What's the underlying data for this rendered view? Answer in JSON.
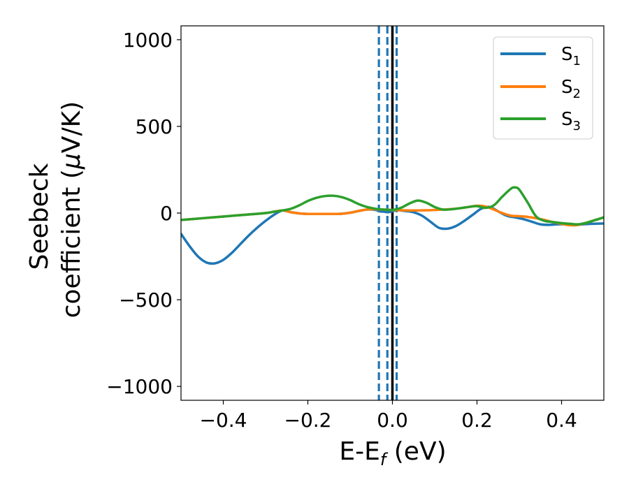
{
  "chart_data": {
    "type": "line",
    "title": "",
    "xlabel": {
      "main": "E-E",
      "sub": "f",
      "tail": " (eV)"
    },
    "ylabel": {
      "line1": "Seebeck",
      "line2_pre": "coefficient  (",
      "line2_mu": "μ",
      "line2_post": "V/K)"
    },
    "xlim": [
      -0.5,
      0.5
    ],
    "ylim": [
      -1080,
      1080
    ],
    "x_ticks": [
      -0.4,
      -0.2,
      0.0,
      0.2,
      0.4
    ],
    "x_tick_labels": [
      "−0.4",
      "−0.2",
      "0.0",
      "0.2",
      "0.4"
    ],
    "y_ticks": [
      -1000,
      -500,
      0,
      500,
      1000
    ],
    "y_tick_labels": [
      "−1000",
      "−500",
      "0",
      "500",
      "1000"
    ],
    "grid": false,
    "legend_position": "top-right",
    "colors": {
      "s1": "#1f77b4",
      "s2": "#ff7f0e",
      "s3": "#2ca02c",
      "fermi": "#000000"
    },
    "vertical_lines": [
      {
        "x": -0.032,
        "style": "dashed",
        "color": "#1f77b4"
      },
      {
        "x": -0.012,
        "style": "dashed",
        "color": "#1f77b4"
      },
      {
        "x": 0.01,
        "style": "dashed",
        "color": "#1f77b4"
      },
      {
        "x": 0.0,
        "style": "solid",
        "color": "#000000"
      }
    ],
    "series": [
      {
        "name": "S",
        "sub": "1",
        "color": "#1f77b4",
        "x": [
          -0.5,
          -0.48,
          -0.46,
          -0.44,
          -0.42,
          -0.4,
          -0.38,
          -0.36,
          -0.34,
          -0.32,
          -0.3,
          -0.28,
          -0.26,
          -0.24,
          -0.22,
          -0.2,
          -0.18,
          -0.16,
          -0.14,
          -0.12,
          -0.1,
          -0.08,
          -0.06,
          -0.04,
          -0.03,
          -0.02,
          -0.01,
          0.0,
          0.01,
          0.02,
          0.03,
          0.05,
          0.07,
          0.09,
          0.11,
          0.13,
          0.15,
          0.17,
          0.19,
          0.21,
          0.23,
          0.25,
          0.27,
          0.29,
          0.31,
          0.33,
          0.35,
          0.37,
          0.39,
          0.41,
          0.43,
          0.45,
          0.47,
          0.5
        ],
        "values": [
          -120,
          -190,
          -250,
          -285,
          -290,
          -270,
          -230,
          -180,
          -130,
          -85,
          -45,
          -10,
          15,
          5,
          -2,
          -5,
          -5,
          -5,
          -5,
          -4,
          2,
          12,
          20,
          18,
          10,
          8,
          5,
          10,
          18,
          15,
          12,
          5,
          -15,
          -50,
          -85,
          -90,
          -75,
          -45,
          -10,
          25,
          35,
          10,
          -15,
          -25,
          -35,
          -50,
          -65,
          -68,
          -65,
          -65,
          -68,
          -65,
          -62,
          -60
        ]
      },
      {
        "name": "S",
        "sub": "2",
        "color": "#ff7f0e",
        "x": [
          -0.5,
          -0.45,
          -0.4,
          -0.35,
          -0.3,
          -0.28,
          -0.26,
          -0.24,
          -0.22,
          -0.2,
          -0.18,
          -0.16,
          -0.14,
          -0.12,
          -0.1,
          -0.08,
          -0.06,
          -0.04,
          -0.02,
          0.0,
          0.02,
          0.04,
          0.06,
          0.08,
          0.1,
          0.12,
          0.14,
          0.16,
          0.18,
          0.2,
          0.22,
          0.24,
          0.26,
          0.28,
          0.3,
          0.32,
          0.34,
          0.36,
          0.38,
          0.4,
          0.42,
          0.44,
          0.46,
          0.48,
          0.5
        ],
        "values": [
          -40,
          -30,
          -20,
          -10,
          0,
          8,
          15,
          5,
          -2,
          -5,
          -5,
          -5,
          -5,
          -4,
          2,
          12,
          20,
          22,
          20,
          18,
          16,
          15,
          15,
          16,
          18,
          20,
          23,
          28,
          35,
          42,
          38,
          20,
          0,
          -15,
          -18,
          -22,
          -30,
          -40,
          -52,
          -62,
          -70,
          -68,
          -55,
          -40,
          -25
        ]
      },
      {
        "name": "S",
        "sub": "3",
        "color": "#2ca02c",
        "x": [
          -0.5,
          -0.45,
          -0.4,
          -0.35,
          -0.3,
          -0.28,
          -0.26,
          -0.24,
          -0.22,
          -0.2,
          -0.18,
          -0.16,
          -0.14,
          -0.12,
          -0.1,
          -0.08,
          -0.06,
          -0.04,
          -0.02,
          0.0,
          0.02,
          0.04,
          0.06,
          0.08,
          0.1,
          0.12,
          0.14,
          0.16,
          0.18,
          0.2,
          0.22,
          0.24,
          0.26,
          0.28,
          0.29,
          0.3,
          0.32,
          0.34,
          0.36,
          0.38,
          0.4,
          0.42,
          0.44,
          0.46,
          0.48,
          0.5
        ],
        "values": [
          -40,
          -30,
          -20,
          -10,
          0,
          8,
          15,
          25,
          45,
          70,
          88,
          98,
          100,
          92,
          75,
          52,
          35,
          25,
          20,
          18,
          30,
          55,
          72,
          60,
          35,
          20,
          22,
          28,
          35,
          40,
          30,
          45,
          95,
          140,
          148,
          135,
          60,
          -20,
          -45,
          -52,
          -58,
          -62,
          -65,
          -55,
          -40,
          -25
        ]
      }
    ]
  }
}
